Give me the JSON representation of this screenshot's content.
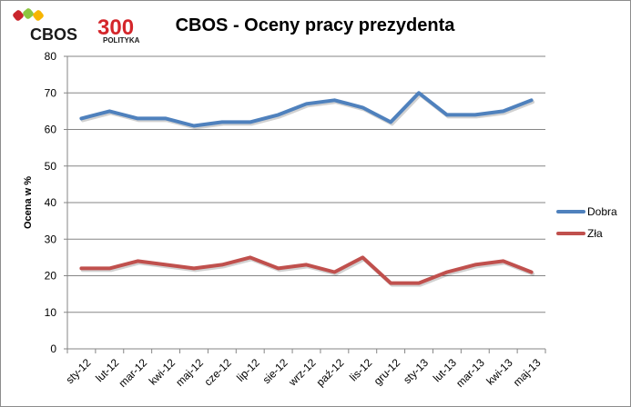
{
  "logos": {
    "cbos": "CBOS",
    "polityka_number": "300",
    "polityka_word": "POLITYKA"
  },
  "colors": {
    "series_dobra": "#4f81bd",
    "series_zla": "#c0504d",
    "grid": "#868686",
    "axis": "#868686"
  },
  "chart_data": {
    "type": "line",
    "title": "CBOS - Oceny pracy prezydenta",
    "xlabel": "",
    "ylabel": "Ocena w %",
    "ylim": [
      0,
      80
    ],
    "yticks": [
      "0",
      "10",
      "20",
      "30",
      "40",
      "50",
      "60",
      "70",
      "80"
    ],
    "grid": true,
    "legend_position": "right",
    "categories": [
      "sty-12",
      "lut-12",
      "mar-12",
      "kwi-12",
      "maj-12",
      "cze-12",
      "lip-12",
      "sie-12",
      "wrz-12",
      "paź-12",
      "lis-12",
      "gru-12",
      "sty-13",
      "lut-13",
      "mar-13",
      "kwi-13",
      "maj-13"
    ],
    "series": [
      {
        "name": "Dobra",
        "values": [
          63,
          65,
          63,
          63,
          61,
          62,
          62,
          64,
          67,
          68,
          66,
          62,
          70,
          64,
          64,
          65,
          68
        ]
      },
      {
        "name": "Zła",
        "values": [
          22,
          22,
          24,
          23,
          22,
          23,
          25,
          22,
          23,
          21,
          25,
          18,
          18,
          21,
          23,
          24,
          21
        ]
      }
    ]
  }
}
